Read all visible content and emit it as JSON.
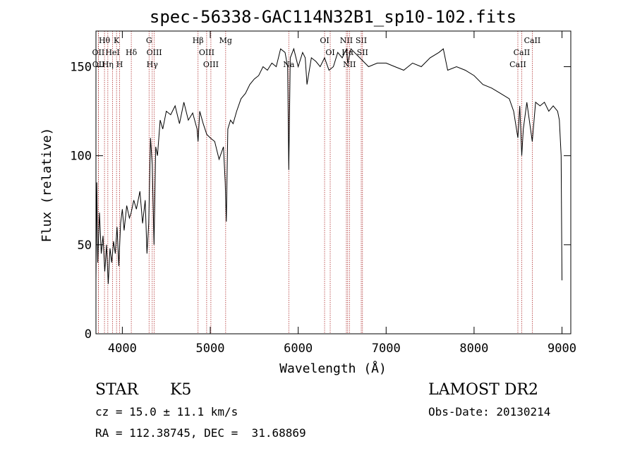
{
  "chart_data": {
    "type": "line",
    "title": "spec-56338-GAC114N32B1_sp10-102.fits",
    "xlabel": "Wavelength (Å)",
    "ylabel": "Flux (relative)",
    "xlim": [
      3700,
      9100
    ],
    "ylim": [
      0,
      170
    ],
    "xticks": [
      4000,
      5000,
      6000,
      7000,
      8000,
      9000
    ],
    "yticks": [
      0,
      50,
      100,
      150
    ],
    "grid": false,
    "legend": "none",
    "series": [
      {
        "x": [
          3700,
          3710,
          3720,
          3740,
          3760,
          3780,
          3800,
          3820,
          3840,
          3860,
          3880,
          3900,
          3920,
          3940,
          3960,
          3980,
          4000,
          4020,
          4050,
          4080,
          4100,
          4130,
          4160,
          4200,
          4230,
          4260,
          4280,
          4300,
          4320,
          4340,
          4360,
          4380,
          4400,
          4430,
          4460,
          4500,
          4550,
          4600,
          4650,
          4700,
          4750,
          4800,
          4850,
          4861,
          4880,
          4920,
          4960,
          5000,
          5050,
          5100,
          5150,
          5170,
          5183,
          5200,
          5230,
          5260,
          5300,
          5350,
          5400,
          5450,
          5500,
          5550,
          5600,
          5650,
          5700,
          5750,
          5800,
          5850,
          5880,
          5893,
          5910,
          5950,
          6000,
          6050,
          6080,
          6100,
          6150,
          6200,
          6250,
          6300,
          6350,
          6400,
          6450,
          6500,
          6550,
          6563,
          6600,
          6700,
          6800,
          6900,
          7000,
          7100,
          7200,
          7300,
          7400,
          7500,
          7600,
          7650,
          7700,
          7800,
          7900,
          8000,
          8100,
          8200,
          8300,
          8400,
          8450,
          8498,
          8520,
          8542,
          8560,
          8600,
          8662,
          8700,
          8750,
          8800,
          8850,
          8900,
          8950,
          8970,
          8990,
          9000
        ],
        "y": [
          30,
          85,
          40,
          68,
          45,
          55,
          35,
          50,
          28,
          48,
          40,
          52,
          45,
          60,
          38,
          62,
          70,
          58,
          72,
          65,
          68,
          75,
          70,
          80,
          62,
          75,
          45,
          62,
          110,
          95,
          50,
          105,
          100,
          120,
          115,
          125,
          123,
          128,
          118,
          130,
          120,
          124,
          115,
          108,
          125,
          118,
          112,
          110,
          108,
          98,
          105,
          85,
          63,
          115,
          120,
          118,
          125,
          132,
          135,
          140,
          143,
          145,
          150,
          148,
          152,
          150,
          160,
          158,
          150,
          92,
          155,
          160,
          150,
          158,
          155,
          140,
          155,
          153,
          150,
          155,
          148,
          150,
          158,
          155,
          160,
          152,
          160,
          155,
          150,
          152,
          152,
          150,
          148,
          152,
          150,
          155,
          158,
          160,
          148,
          150,
          148,
          145,
          140,
          138,
          135,
          132,
          125,
          110,
          128,
          100,
          115,
          130,
          108,
          130,
          128,
          130,
          125,
          128,
          125,
          120,
          100,
          30
        ]
      }
    ],
    "spectral_lines": [
      {
        "label": "Hθ",
        "x": 3797,
        "row": 0
      },
      {
        "label": "K",
        "x": 3934,
        "row": 0
      },
      {
        "label": "G",
        "x": 4304,
        "row": 0
      },
      {
        "label": "Hβ",
        "x": 4861,
        "row": 0
      },
      {
        "label": "Mg",
        "x": 5175,
        "row": 0
      },
      {
        "label": "OI",
        "x": 6300,
        "row": 0
      },
      {
        "label": "NII",
        "x": 6548,
        "row": 0
      },
      {
        "label": "SII",
        "x": 6717,
        "row": 0
      },
      {
        "label": "CaII",
        "x": 8662,
        "row": 0
      },
      {
        "label": "OII",
        "x": 3727,
        "row": 1
      },
      {
        "label": "HeI",
        "x": 3889,
        "row": 1
      },
      {
        "label": "Hδ",
        "x": 4102,
        "row": 1
      },
      {
        "label": "OIII",
        "x": 4363,
        "row": 1
      },
      {
        "label": "OIII",
        "x": 4959,
        "row": 1
      },
      {
        "label": "OI",
        "x": 6364,
        "row": 1
      },
      {
        "label": "Hα",
        "x": 6563,
        "row": 1
      },
      {
        "label": "SII",
        "x": 6731,
        "row": 1
      },
      {
        "label": "CaII",
        "x": 8542,
        "row": 1
      },
      {
        "label": "OII",
        "x": 3729,
        "row": 2
      },
      {
        "label": "Hη",
        "x": 3835,
        "row": 2
      },
      {
        "label": "H",
        "x": 3969,
        "row": 2
      },
      {
        "label": "Hγ",
        "x": 4340,
        "row": 2
      },
      {
        "label": "OIII",
        "x": 5007,
        "row": 2
      },
      {
        "label": "Na",
        "x": 5893,
        "row": 2
      },
      {
        "label": "NII",
        "x": 6583,
        "row": 2
      },
      {
        "label": "CaII",
        "x": 8498,
        "row": 2
      }
    ]
  },
  "info": {
    "class": "STAR",
    "subclass": "K5",
    "cz": "cz = 15.0 ± 11.1 km/s",
    "radec": "RA = 112.38745, DEC =  31.68869",
    "survey": "LAMOST DR2",
    "obs_date": "Obs-Date: 20130214"
  }
}
